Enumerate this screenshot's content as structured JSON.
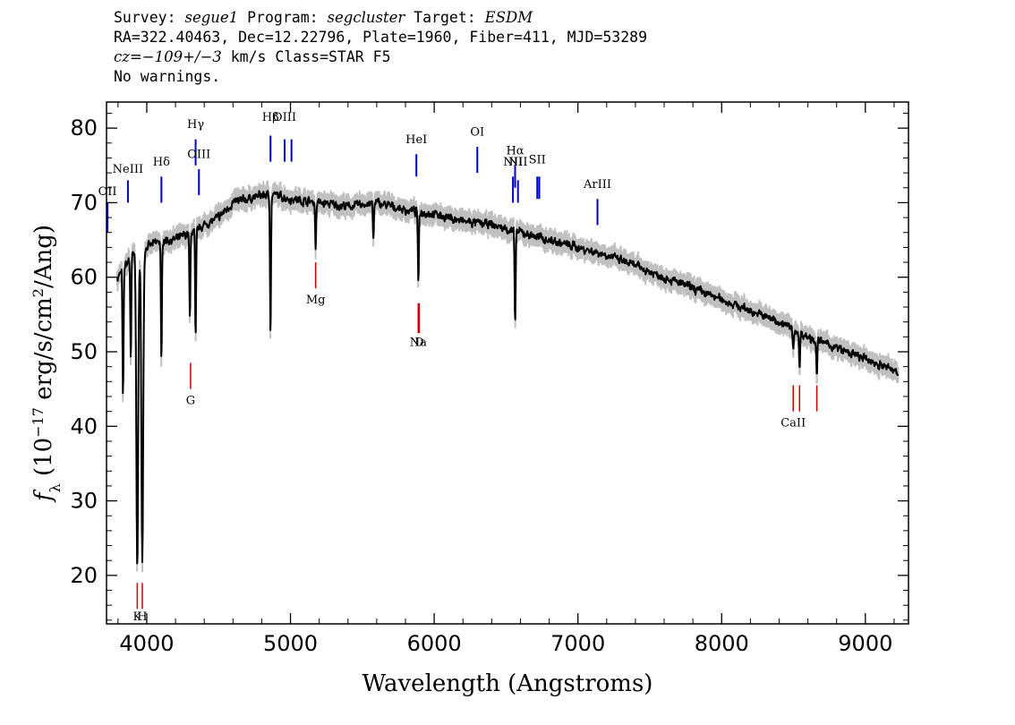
{
  "header": {
    "survey_label": "Survey:",
    "survey": "segue1",
    "program_label": "Program:",
    "program": "segcluster",
    "target_label": "Target:",
    "target": "ESDM",
    "line2": "RA=322.40463, Dec=12.22796, Plate=1960, Fiber=411, MJD=53289",
    "cz_label": "cz=",
    "cz_value": "−109+/−3",
    "cz_rest": " km/s Class=STAR F5",
    "line4": "No warnings."
  },
  "chart_data": {
    "type": "line",
    "title": "",
    "xlabel": "Wavelength (Angstroms)",
    "ylabel": "f_λ (10^-17 erg/s/cm^2/Ang)",
    "xlim": [
      3720,
      9300
    ],
    "ylim": [
      13.5,
      83.5
    ],
    "x_ticks": [
      4000,
      5000,
      6000,
      7000,
      8000,
      9000
    ],
    "y_ticks": [
      20,
      30,
      40,
      50,
      60,
      70,
      80
    ],
    "colors": {
      "spectrum": "#000000",
      "error": "#c0c0c0",
      "emission": "#0000cc",
      "absorption": "#cc0000"
    },
    "continuum": {
      "x": [
        3800,
        3900,
        4000,
        4100,
        4200,
        4300,
        4400,
        4500,
        4600,
        4700,
        4800,
        4900,
        5000,
        5200,
        5400,
        5600,
        5800,
        6000,
        6200,
        6400,
        6600,
        6800,
        7000,
        7200,
        7400,
        7600,
        7800,
        8000,
        8200,
        8400,
        8600,
        8800,
        9000,
        9200
      ],
      "y": [
        60,
        63,
        64,
        65,
        65,
        66,
        67,
        68,
        70,
        70.5,
        71,
        71,
        70.5,
        70,
        69.5,
        70,
        69,
        68.5,
        67.5,
        67,
        66,
        65,
        64,
        63,
        61.5,
        60,
        58.5,
        57,
        55.5,
        54,
        52,
        50.5,
        49,
        47.5
      ]
    },
    "absorption_features": [
      {
        "x": 3835,
        "y": 43.5
      },
      {
        "x": 3889,
        "y": 49
      },
      {
        "x": 3934,
        "y": 21
      },
      {
        "x": 3969,
        "y": 22
      },
      {
        "x": 4102,
        "y": 48.5
      },
      {
        "x": 4300,
        "y": 54
      },
      {
        "x": 4340,
        "y": 51.5
      },
      {
        "x": 4861,
        "y": 52.5
      },
      {
        "x": 5175,
        "y": 64
      },
      {
        "x": 5577,
        "y": 65
      },
      {
        "x": 5890,
        "y": 59
      },
      {
        "x": 6563,
        "y": 53
      },
      {
        "x": 8498,
        "y": 50
      },
      {
        "x": 8542,
        "y": 47.5
      },
      {
        "x": 8662,
        "y": 47
      }
    ],
    "emission_lines": [
      {
        "label": "OII",
        "x": 3727,
        "y0": 66,
        "y1": 70,
        "ly": 71
      },
      {
        "label": "NeIII",
        "x": 3869,
        "y0": 70,
        "y1": 73,
        "ly": 74
      },
      {
        "label": "Hδ",
        "x": 4102,
        "y0": 70,
        "y1": 73.5,
        "ly": 75
      },
      {
        "label": "Hγ",
        "x": 4340,
        "y0": 75,
        "y1": 78.5,
        "ly": 80
      },
      {
        "label": "OIII",
        "x": 4363,
        "y0": 71,
        "y1": 74.5,
        "ly": 76
      },
      {
        "label": "Hβ",
        "x": 4861,
        "y0": 75.5,
        "y1": 79,
        "ly": 81
      },
      {
        "label": "OIII",
        "x": 4959,
        "y0": 75.5,
        "y1": 78.5,
        "ly": 81
      },
      {
        "label": "",
        "x": 5007,
        "y0": 75.5,
        "y1": 78.5,
        "ly": 0
      },
      {
        "label": "HeI",
        "x": 5876,
        "y0": 73.5,
        "y1": 76.5,
        "ly": 78
      },
      {
        "label": "OI",
        "x": 6300,
        "y0": 74,
        "y1": 77.5,
        "ly": 79
      },
      {
        "label": "NII",
        "x": 6548,
        "y0": 70,
        "y1": 73.5,
        "ly": 75
      },
      {
        "label": "Hα",
        "x": 6563,
        "y0": 72,
        "y1": 75,
        "ly": 76.5
      },
      {
        "label": "NII",
        "x": 6583,
        "y0": 70,
        "y1": 73,
        "ly": 75
      },
      {
        "label": "SII",
        "x": 6717,
        "y0": 70.5,
        "y1": 73.5,
        "ly": 75.3
      },
      {
        "label": "",
        "x": 6731,
        "y0": 70.5,
        "y1": 73.5,
        "ly": 0
      },
      {
        "label": "ArIII",
        "x": 7136,
        "y0": 67,
        "y1": 70.5,
        "ly": 72
      }
    ],
    "absorption_lines": [
      {
        "label": "K",
        "x": 3934,
        "y0": 15.5,
        "y1": 19,
        "ly": 14
      },
      {
        "label": "H",
        "x": 3969,
        "y0": 15.5,
        "y1": 19,
        "ly": 14
      },
      {
        "label": "G",
        "x": 4305,
        "y0": 45,
        "y1": 48.5,
        "ly": 43
      },
      {
        "label": "Mg",
        "x": 5175,
        "y0": 58.5,
        "y1": 62,
        "ly": 56.5
      },
      {
        "label": "Na",
        "x": 5889,
        "y0": 52.5,
        "y1": 56.5,
        "ly": 50.8
      },
      {
        "label": "D",
        "x": 5896,
        "y0": 52.5,
        "y1": 56.5,
        "ly": 50.8
      },
      {
        "label": "CaII",
        "x": 8498,
        "y0": 42,
        "y1": 45.5,
        "ly": 40
      },
      {
        "label": "",
        "x": 8542,
        "y0": 42,
        "y1": 45.5,
        "ly": 0
      },
      {
        "label": "",
        "x": 8662,
        "y0": 42,
        "y1": 45.5,
        "ly": 0
      }
    ]
  }
}
